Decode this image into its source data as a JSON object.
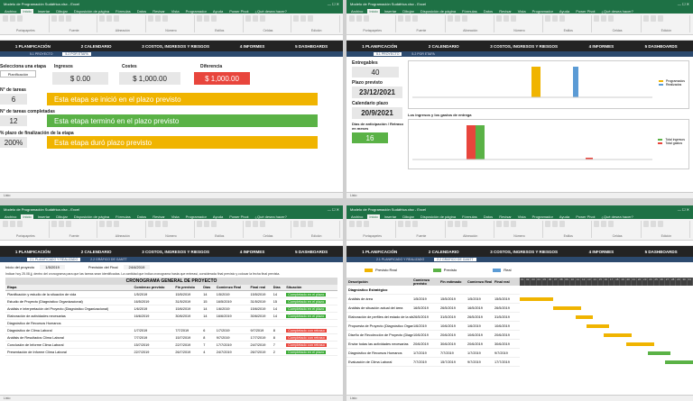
{
  "app": {
    "tabs": [
      "Archivo",
      "Inicio",
      "Insertar",
      "Dibujar",
      "Disposición de página",
      "Fórmulas",
      "Datos",
      "Revisar",
      "Vista",
      "Programador",
      "Ayuda",
      "Power Pivot",
      "¿Qué desea hacer?"
    ],
    "title_tl": "Modelo de Programación Sudáfrica.xlsx - Excel",
    "title_bl": "Modelo de Programación Sudáfrica.xlsx - Excel",
    "groups": [
      "Portapapeles",
      "Fuente",
      "Alineación",
      "Número",
      "Estilos",
      "Celdas",
      "Edición"
    ]
  },
  "nav": {
    "items": [
      "1 PLANIFICACIÓN",
      "2 CALENDARIO",
      "3 COSTOS, INGRESOS Y RIESGOS",
      "4 INFORMES",
      "5 DASHBOARDS"
    ]
  },
  "top_left": {
    "subtabs": [
      "5.1 PROYECTO",
      "5.2 POR ETAPA"
    ],
    "labels": {
      "stage": "Selecciona una etapa",
      "stage_value": "Planificación",
      "income": "Ingresos",
      "costs": "Costes",
      "difference": "Diferencia",
      "tasks_count": "N° de tareas",
      "tasks_done": "N° de tareas completadas",
      "pct_finish": "% plazo de finalización de la etapa"
    },
    "values": {
      "income": "$ 0.00",
      "costs": "$ 1,000.00",
      "difference": "$ 1,000.00",
      "tasks_count": "6",
      "tasks_done": "12",
      "pct_finish": "200%"
    },
    "messages": [
      {
        "text": "Esta etapa se inició en el plazo previsto",
        "color": "#f0b400"
      },
      {
        "text": "Esta etapa terminó en el plazo previsto",
        "color": "#5ab246"
      },
      {
        "text": "Esta etapa duró plazo previsto",
        "color": "#f0b400"
      }
    ]
  },
  "top_right": {
    "subtabs": [
      "5.1 PROYECTO",
      "5.2 POR ETAPA"
    ],
    "deliverables_label": "Entregables",
    "deliverables_value": "40",
    "deadline_label": "Plazo previsto",
    "deadline_value": "23/12/2021",
    "calendar_label": "Calendario plazo",
    "calendar_value": "20/9/2021",
    "anticipation_label": "Días de anticipación / Retraso en meses",
    "anticipation_value": "16",
    "chart2_title": "Los ingresos y los gastos de entrega",
    "legend1": [
      "Programados",
      "Realizados"
    ],
    "legend2": [
      "Total ingresos",
      "Total gastos"
    ]
  },
  "bottom_left": {
    "subtabs": [
      "2.1 PLANIFICADO Y REALIZADO",
      "2.2 GRÁFICO DE GANTT"
    ],
    "meta": {
      "start_label": "Inicio del proyecto",
      "start_value": "1/5/2019",
      "end_label": "Previsión del Final",
      "end_value": "24/4/2019"
    },
    "note": "Indicar hoy 25.08.jj, dentro del cronograma para que las tareas sean identificadas. La cantidad que indica cronograma hasta que entreasi, considerada final previsto y colocar la fecha final prevista.",
    "table_title": "CRONOGRAMA GENERAL DE PROYECTO",
    "columns": [
      "Etapa",
      "Comienzo previsto",
      "Fin previsto",
      "Días",
      "Comienzo Real",
      "Final real",
      "Días",
      "Situación"
    ],
    "rows": [
      {
        "name": "Planificación y estudio de la situación de vida",
        "c1": "1/5/2019",
        "c2": "15/5/2019",
        "d": "14",
        "r1": "1/5/2019",
        "r2": "15/5/2019",
        "d2": "14",
        "status": "Completado en el plazo",
        "ok": true
      },
      {
        "name": "Estudio de Proyecto (Diagnóstico Organizacional)",
        "c1": "16/5/2019",
        "c2": "31/5/2019",
        "d": "15",
        "r1": "16/5/2019",
        "r2": "31/5/2019",
        "d2": "15",
        "status": "Completado en el plazo",
        "ok": true
      },
      {
        "name": "Análisis e interpretación del Proyecto (Diagnóstico Organizacional)",
        "c1": "1/6/2019",
        "c2": "15/6/2019",
        "d": "14",
        "r1": "1/6/2019",
        "r2": "15/6/2019",
        "d2": "14",
        "status": "Completado en el plazo",
        "ok": true
      },
      {
        "name": "Elaboración de actividades necesarias",
        "c1": "16/6/2019",
        "c2": "30/6/2019",
        "d": "14",
        "r1": "16/6/2019",
        "r2": "30/6/2019",
        "d2": "14",
        "status": "Completado en el plazo",
        "ok": true
      },
      {
        "name": "Diagnóstico de Recursos Humanos",
        "c1": "",
        "c2": "",
        "d": "",
        "r1": "",
        "r2": "",
        "d2": "",
        "status": "",
        "ok": true
      },
      {
        "name": "Diagnóstico de Clima Laboral",
        "c1": "1/7/2019",
        "c2": "7/7/2019",
        "d": "6",
        "r1": "1/7/2019",
        "r2": "9/7/2019",
        "d2": "8",
        "status": "Completado con retraso",
        "ok": false
      },
      {
        "name": "Análisis de Resultados Clima Laboral",
        "c1": "7/7/2019",
        "c2": "15/7/2019",
        "d": "8",
        "r1": "9/7/2019",
        "r2": "17/7/2019",
        "d2": "8",
        "status": "Completado con retraso",
        "ok": false
      },
      {
        "name": "Conclusión de Informe Clima Laboral",
        "c1": "15/7/2019",
        "c2": "22/7/2019",
        "d": "7",
        "r1": "17/7/2019",
        "r2": "24/7/2019",
        "d2": "7",
        "status": "Completado con retraso",
        "ok": false
      },
      {
        "name": "Presentación de Informe Clima Laboral",
        "c1": "22/7/2019",
        "c2": "26/7/2019",
        "d": "4",
        "r1": "24/7/2019",
        "r2": "26/7/2019",
        "d2": "2",
        "status": "Completado en el plazo",
        "ok": true
      }
    ]
  },
  "bottom_right": {
    "subtabs": [
      "2.1 PLANIFICADO Y REALIZADO",
      "2.2 GRÁFICO DE GANTT"
    ],
    "legend": [
      {
        "label": "Previsto Real",
        "color": "#f0b400"
      },
      {
        "label": "Previsto",
        "color": "#5ab246"
      },
      {
        "label": "Real",
        "color": "#5b9bd5"
      }
    ],
    "columns": [
      "Descripción",
      "Comienzo previsto",
      "Fin estimado",
      "Comienzo Real",
      "Final real"
    ],
    "section": "Diagnóstico Estratégico",
    "rows": [
      {
        "name": "Análisis de área",
        "a": "1/5/2019",
        "b": "15/5/2019",
        "c": "1/5/2019",
        "d": "15/5/2019",
        "s": 0,
        "w": 6,
        "color": "#f0b400"
      },
      {
        "name": "Análisis de situación actual del área",
        "a": "16/5/2019",
        "b": "26/5/2019",
        "c": "16/5/2019",
        "d": "26/5/2019",
        "s": 6,
        "w": 5,
        "color": "#f0b400"
      },
      {
        "name": "Elaboración de perfiles del estado de la situación del área",
        "a": "26/5/2019",
        "b": "31/5/2019",
        "c": "26/5/2019",
        "d": "31/5/2019",
        "s": 10,
        "w": 3,
        "color": "#f0b400"
      },
      {
        "name": "Propuesta de Proyecto (Diagnóstico Organizacional)",
        "a": "1/6/2019",
        "b": "10/6/2019",
        "c": "1/6/2019",
        "d": "10/6/2019",
        "s": 12,
        "w": 4,
        "color": "#f0b400"
      },
      {
        "name": "Diseño de Recolección de Proyecto (Diagnóstico Organizacional)",
        "a": "10/6/2019",
        "b": "20/6/2019",
        "c": "10/6/2019",
        "d": "20/6/2019",
        "s": 15,
        "w": 5,
        "color": "#f0b400"
      },
      {
        "name": "Enviar todas las actividades necesarias",
        "a": "20/6/2019",
        "b": "30/6/2019",
        "c": "20/6/2019",
        "d": "30/6/2019",
        "s": 19,
        "w": 5,
        "color": "#f0b400"
      },
      {
        "name": "Diagnóstico de Recursos Humanos",
        "a": "1/7/2019",
        "b": "7/7/2019",
        "c": "1/7/2019",
        "d": "9/7/2019",
        "s": 23,
        "w": 4,
        "color": "#5ab246"
      },
      {
        "name": "Evaluación de Clima Laboral",
        "a": "7/7/2019",
        "b": "15/7/2019",
        "c": "9/7/2019",
        "d": "17/7/2019",
        "s": 26,
        "w": 5,
        "color": "#5ab246"
      }
    ],
    "days": [
      "01",
      "02",
      "03",
      "04",
      "05",
      "06",
      "07",
      "08",
      "09",
      "10",
      "11",
      "12",
      "13",
      "14",
      "15",
      "16",
      "17",
      "18",
      "19",
      "20",
      "21",
      "22",
      "23",
      "24",
      "25",
      "26",
      "27",
      "28",
      "29",
      "30",
      "31"
    ]
  },
  "status": {
    "tl": "Listo",
    "tr": "Listo",
    "bl": "Listo",
    "br": "Listo"
  }
}
